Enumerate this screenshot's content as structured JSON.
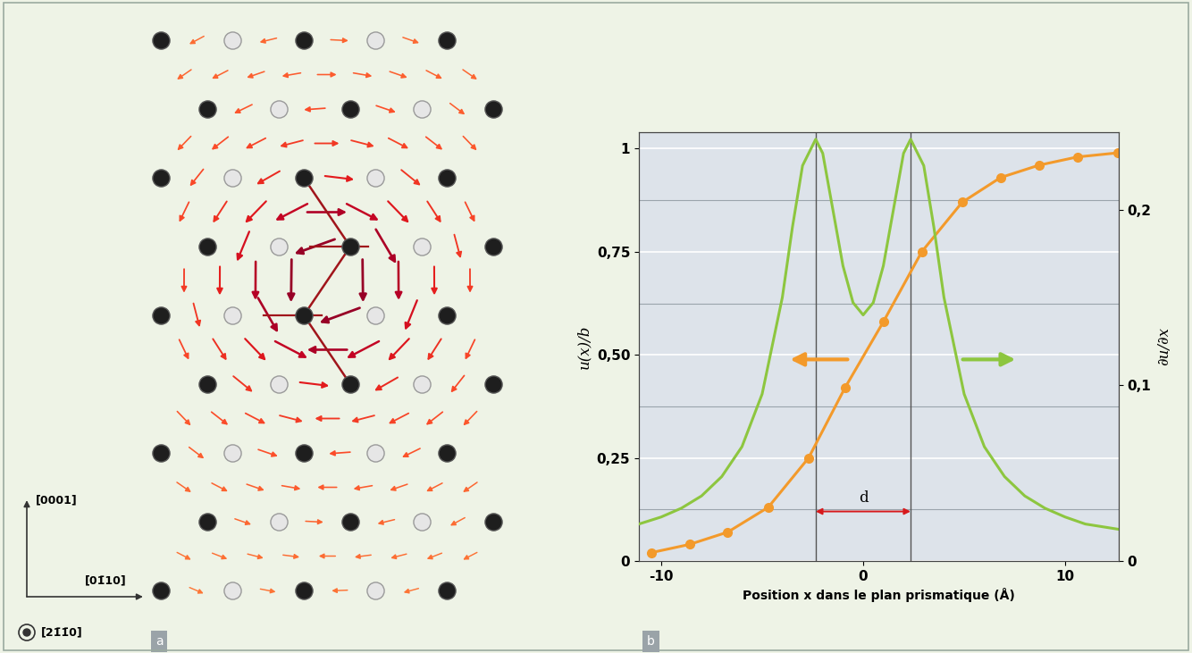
{
  "panel_a": {
    "type": "diagram",
    "label": "a",
    "directions": {
      "up": "[0001]",
      "right": "[01̄10]",
      "out": "[21̄1̄0]"
    }
  },
  "chart_data": {
    "type": "line",
    "label": "b",
    "xlabel": "Position x dans le plan prismatique (Å)",
    "ylabel": "u(x)/b",
    "y2label": "∂u/∂x",
    "xlim": [
      -11.1,
      12.65
    ],
    "xticks": [
      -10,
      0,
      10
    ],
    "ylim": [
      0,
      1.04
    ],
    "yticks": [
      0,
      {
        "value": 0.25,
        "label": "0,25"
      },
      {
        "value": 0.5,
        "label": "0,50"
      },
      {
        "value": 0.75,
        "label": "0,75"
      },
      1
    ],
    "y2lim": [
      0,
      0.244
    ],
    "y2ticks": [
      0,
      {
        "value": 0.1,
        "label": "0,1"
      },
      {
        "value": 0.2,
        "label": "0,2"
      }
    ],
    "grid": true,
    "series": [
      {
        "color": "#f39a2b",
        "marker": "o",
        "line_style": "solid",
        "axis": "y",
        "x": [
          -10.5,
          -8.6,
          -6.7,
          -4.7,
          -2.7,
          -0.9,
          1.0,
          2.9,
          4.9,
          6.8,
          8.7,
          10.6,
          12.6
        ],
        "values": [
          0.02,
          0.04,
          0.07,
          0.13,
          0.25,
          0.42,
          0.58,
          0.75,
          0.87,
          0.93,
          0.96,
          0.98,
          0.99
        ]
      },
      {
        "color": "#8dc63f",
        "line_style": "solid",
        "axis": "y2",
        "x": [
          -11.1,
          -10,
          -9,
          -8,
          -7,
          -6,
          -5,
          -4,
          -3.5,
          -3,
          -2.35,
          -2,
          -1.5,
          -1,
          -0.5,
          0,
          0.5,
          1,
          1.5,
          2,
          2.35,
          3,
          3.5,
          4,
          5,
          6,
          7,
          8,
          9,
          10,
          11,
          12.65
        ],
        "values": [
          0.021,
          0.025,
          0.03,
          0.037,
          0.048,
          0.065,
          0.095,
          0.15,
          0.19,
          0.225,
          0.24,
          0.232,
          0.2,
          0.168,
          0.147,
          0.14,
          0.147,
          0.168,
          0.2,
          0.232,
          0.24,
          0.225,
          0.19,
          0.15,
          0.095,
          0.065,
          0.048,
          0.037,
          0.03,
          0.025,
          0.021,
          0.018
        ]
      }
    ],
    "annotations": [
      {
        "text": "d",
        "x": [
          -2.35,
          2.35
        ],
        "y": 0.12
      }
    ]
  }
}
